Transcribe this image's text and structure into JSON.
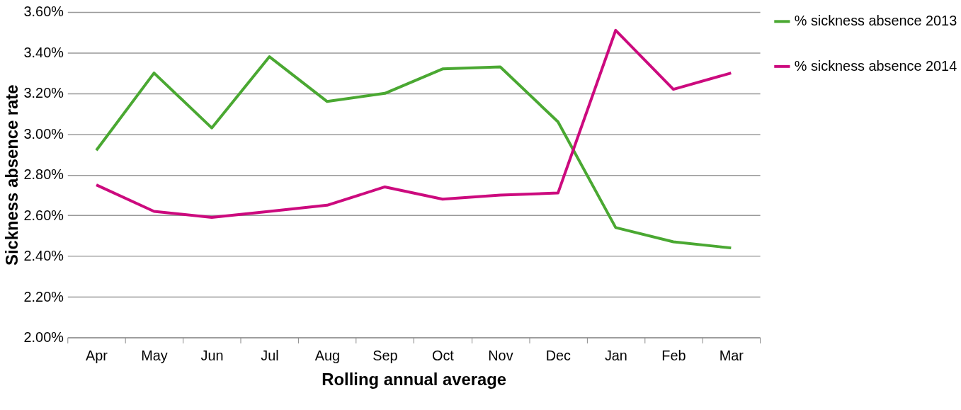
{
  "chart_data": {
    "type": "line",
    "xlabel": "Rolling annual average",
    "ylabel": "Sickness absence rate",
    "categories": [
      "Apr",
      "May",
      "Jun",
      "Jul",
      "Aug",
      "Sep",
      "Oct",
      "Nov",
      "Dec",
      "Jan",
      "Feb",
      "Mar"
    ],
    "series": [
      {
        "name": "% sickness absence 2013",
        "color": "#4aa832",
        "values": [
          2.92,
          3.3,
          3.03,
          3.38,
          3.16,
          3.2,
          3.32,
          3.33,
          3.06,
          2.54,
          2.47,
          2.44
        ]
      },
      {
        "name": "% sickness absence 2014",
        "color": "#cc0a7e",
        "values": [
          2.75,
          2.62,
          2.59,
          2.62,
          2.65,
          2.74,
          2.68,
          2.7,
          2.71,
          3.51,
          3.22,
          3.3
        ]
      }
    ],
    "ylim": [
      2.0,
      3.6
    ],
    "yticks": [
      {
        "value": 2.0,
        "label": "2.00%"
      },
      {
        "value": 2.2,
        "label": "2.20%"
      },
      {
        "value": 2.4,
        "label": "2.40%"
      },
      {
        "value": 2.6,
        "label": "2.60%"
      },
      {
        "value": 2.8,
        "label": "2.80%"
      },
      {
        "value": 3.0,
        "label": "3.00%"
      },
      {
        "value": 3.2,
        "label": "3.20%"
      },
      {
        "value": 3.4,
        "label": "3.40%"
      },
      {
        "value": 3.6,
        "label": "3.60%"
      }
    ],
    "grid": "y",
    "legend": "right",
    "marker": "none",
    "line_style": "solid"
  }
}
